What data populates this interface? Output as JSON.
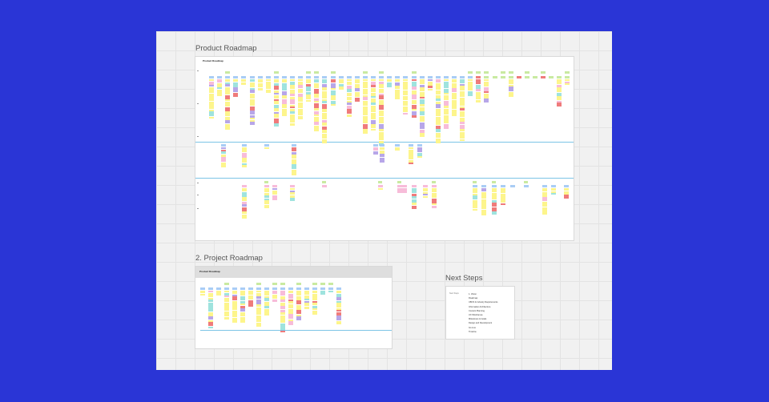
{
  "board": {
    "background": "#f1f1f1",
    "page_background": "#2a35d6"
  },
  "frames": {
    "product_roadmap": {
      "title": "Product Roadmap",
      "inner_title": "Product Roadmap"
    },
    "project_roadmap": {
      "title": "2. Project Roadmap",
      "inner_title": "Product Roadmap"
    },
    "next_steps": {
      "title": "Next Steps",
      "left_label": "Next Steps",
      "items": [
        "1. Vision",
        "Roadmap",
        "UBCS & Industry Requirements",
        "Information Architecture",
        "Content Planning",
        "UX Wireframes",
        "Milestones & Goals",
        "Design and Development",
        "Go Live",
        "Timeline"
      ]
    }
  },
  "colors": {
    "yellow": "#fdf58c",
    "blue": "#a9cdf5",
    "green": "#c9eaa1",
    "pink": "#f7bcd9",
    "red": "#ef7b7b",
    "purple": "#b7a6e8",
    "teal": "#9fe3de",
    "lane": "#7cc4e6"
  }
}
